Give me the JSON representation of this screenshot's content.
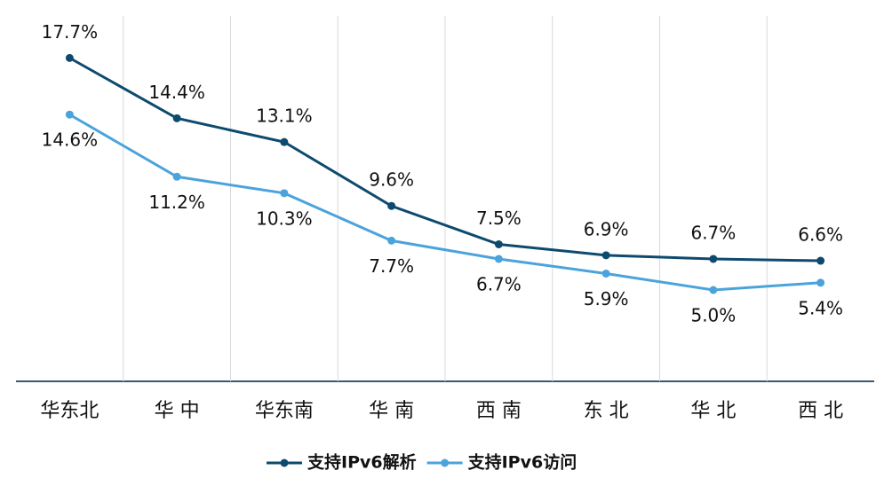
{
  "chart_data": {
    "type": "line",
    "categories": [
      "华东北",
      "华 中",
      "华东南",
      "华 南",
      "西 南",
      "东 北",
      "华 北",
      "西 北"
    ],
    "series": [
      {
        "name": "支持IPv6解析",
        "color": "#0e4a6e",
        "values": [
          17.7,
          14.4,
          13.1,
          9.6,
          7.5,
          6.9,
          6.7,
          6.6
        ],
        "value_labels": [
          "17.7%",
          "14.4%",
          "13.1%",
          "9.6%",
          "7.5%",
          "6.9%",
          "6.7%",
          "6.6%"
        ]
      },
      {
        "name": "支持IPv6访问",
        "color": "#4ba3dc",
        "values": [
          14.6,
          11.2,
          10.3,
          7.7,
          6.7,
          5.9,
          5.0,
          5.4
        ],
        "value_labels": [
          "14.6%",
          "11.2%",
          "10.3%",
          "7.7%",
          "6.7%",
          "5.9%",
          "5.0%",
          "5.4%"
        ]
      }
    ],
    "ylim": [
      0,
      20
    ],
    "grid": true
  }
}
